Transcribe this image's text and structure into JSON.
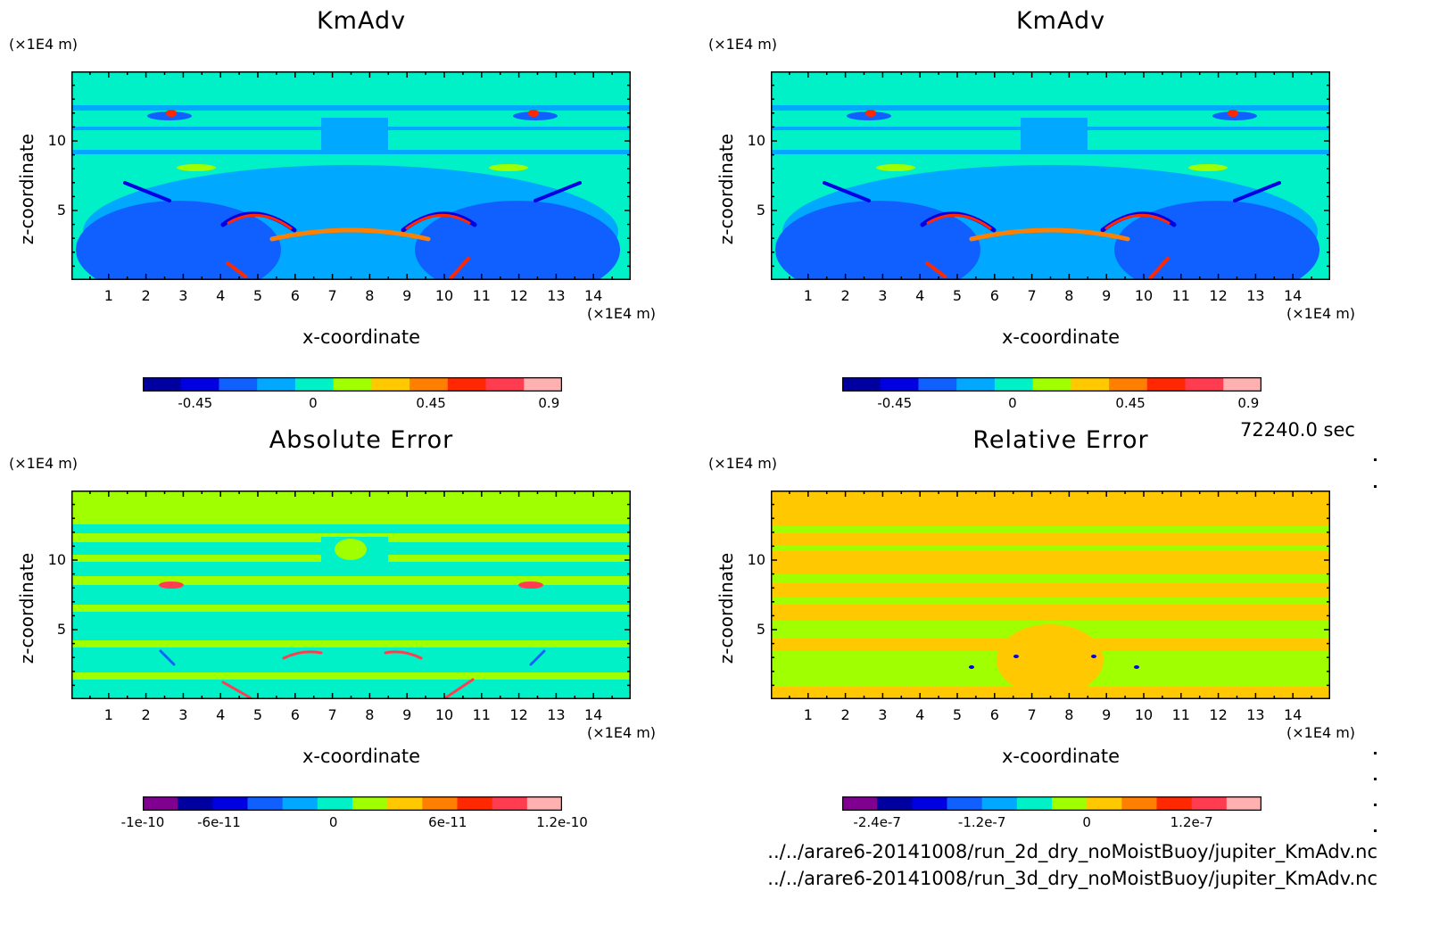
{
  "timestamp": "72240.0 sec",
  "files": [
    "../../arare6-20141008/run_2d_dry_noMoistBuoy/jupiter_KmAdv.nc",
    "../../arare6-20141008/run_3d_dry_noMoistBuoy/jupiter_KmAdv.nc"
  ],
  "chart_data": [
    {
      "type": "heatmap",
      "title": "KmAdv",
      "xlabel": "x-coordinate",
      "ylabel": "z-coordinate",
      "x_unit": "(×1E4 m)",
      "y_unit": "(×1E4 m)",
      "xlim": [
        0,
        15
      ],
      "ylim": [
        0,
        15
      ],
      "x_ticks": [
        "1",
        "2",
        "3",
        "4",
        "5",
        "6",
        "7",
        "8",
        "9",
        "10",
        "11",
        "12",
        "13",
        "14"
      ],
      "y_ticks": [
        "5",
        "10"
      ],
      "colorbar": {
        "colors": [
          "#0000a0",
          "#0000e0",
          "#1060ff",
          "#00a8ff",
          "#00f0c8",
          "#a0ff00",
          "#ffc800",
          "#ff8000",
          "#ff2800",
          "#ff3c50",
          "#ffb0b0"
        ],
        "labels": [
          "-0.45",
          "0",
          "0.45",
          "0.9"
        ],
        "label_values": [
          -0.45,
          0,
          0.45,
          0.9
        ],
        "range": [
          -0.65,
          0.95
        ]
      },
      "background_level": 4
    },
    {
      "type": "heatmap",
      "title": "KmAdv",
      "xlabel": "x-coordinate",
      "ylabel": "z-coordinate",
      "x_unit": "(×1E4 m)",
      "y_unit": "(×1E4 m)",
      "xlim": [
        0,
        15
      ],
      "ylim": [
        0,
        15
      ],
      "x_ticks": [
        "1",
        "2",
        "3",
        "4",
        "5",
        "6",
        "7",
        "8",
        "9",
        "10",
        "11",
        "12",
        "13",
        "14"
      ],
      "y_ticks": [
        "5",
        "10"
      ],
      "colorbar": {
        "colors": [
          "#0000a0",
          "#0000e0",
          "#1060ff",
          "#00a8ff",
          "#00f0c8",
          "#a0ff00",
          "#ffc800",
          "#ff8000",
          "#ff2800",
          "#ff3c50",
          "#ffb0b0"
        ],
        "labels": [
          "-0.45",
          "0",
          "0.45",
          "0.9"
        ],
        "label_values": [
          -0.45,
          0,
          0.45,
          0.9
        ],
        "range": [
          -0.65,
          0.95
        ]
      },
      "background_level": 4
    },
    {
      "type": "heatmap",
      "title": "Absolute Error",
      "xlabel": "x-coordinate",
      "ylabel": "z-coordinate",
      "x_unit": "(×1E4 m)",
      "y_unit": "(×1E4 m)",
      "xlim": [
        0,
        15
      ],
      "ylim": [
        0,
        15
      ],
      "x_ticks": [
        "1",
        "2",
        "3",
        "4",
        "5",
        "6",
        "7",
        "8",
        "9",
        "10",
        "11",
        "12",
        "13",
        "14"
      ],
      "y_ticks": [
        "5",
        "10"
      ],
      "colorbar": {
        "colors": [
          "#800090",
          "#0000a0",
          "#0000e0",
          "#1060ff",
          "#00a8ff",
          "#00f0c8",
          "#a0ff00",
          "#ffc800",
          "#ff8000",
          "#ff2800",
          "#ff3c50",
          "#ffb0b0"
        ],
        "labels": [
          "-1e-10",
          "-6e-11",
          "0",
          "6e-11",
          "1.2e-10"
        ],
        "label_values": [
          -1e-10,
          -6e-11,
          0,
          6e-11,
          1.2e-10
        ],
        "range": [
          -1e-10,
          1.2e-10
        ]
      },
      "background_level": 6
    },
    {
      "type": "heatmap",
      "title": "Relative Error",
      "xlabel": "x-coordinate",
      "ylabel": "z-coordinate",
      "x_unit": "(×1E4 m)",
      "y_unit": "(×1E4 m)",
      "xlim": [
        0,
        15
      ],
      "ylim": [
        0,
        15
      ],
      "x_ticks": [
        "1",
        "2",
        "3",
        "4",
        "5",
        "6",
        "7",
        "8",
        "9",
        "10",
        "11",
        "12",
        "13",
        "14"
      ],
      "y_ticks": [
        "5",
        "10"
      ],
      "colorbar": {
        "colors": [
          "#800090",
          "#0000a0",
          "#0000e0",
          "#1060ff",
          "#00a8ff",
          "#00f0c8",
          "#a0ff00",
          "#ffc800",
          "#ff8000",
          "#ff2800",
          "#ff3c50",
          "#ffb0b0"
        ],
        "labels": [
          "-2.4e-7",
          "-1.2e-7",
          "0",
          "1.2e-7"
        ],
        "label_values": [
          -2.4e-07,
          -1.2e-07,
          0,
          1.2e-07
        ],
        "range": [
          -2.8e-07,
          2e-07
        ]
      },
      "background_level": 7
    }
  ]
}
